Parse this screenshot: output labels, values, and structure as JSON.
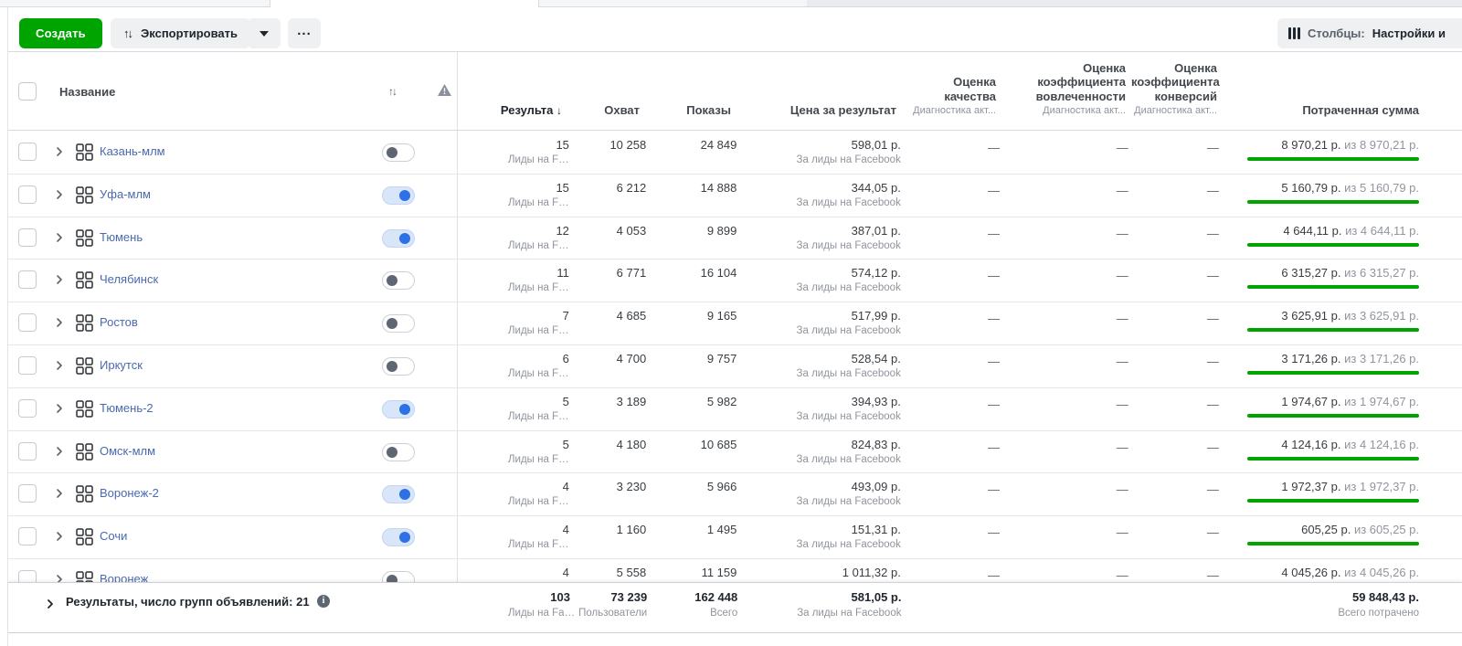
{
  "colors": {
    "accent-green": "#00a400",
    "toggle-on": "#2e71e5",
    "link-blue": "#4a69b0"
  },
  "toolbar": {
    "create": "Создать",
    "export": "Экспортировать",
    "export_icon": "↑↓",
    "more": "...",
    "columns_prefix": "Столбцы:",
    "columns_value": "Настройки и"
  },
  "table": {
    "header": {
      "name": "Название",
      "sort_icon": "↑↓",
      "results": "Результа",
      "results_arrow": "↓",
      "reach": "Охват",
      "impressions": "Показы",
      "cost_per_result": "Цена за результат",
      "quality": "Оценка качества",
      "engagement": "Оценка коэффициента вовлеченности",
      "conversions": "Оценка коэффициента конверсий",
      "diagnostics": "Диагностика акт...",
      "spent": "Потраченная сумма"
    },
    "row_subs": {
      "results": "Лиды на F…",
      "cost": "За лиды на Facebook"
    },
    "dash": "—",
    "rows": [
      {
        "name": "Казань-млм",
        "enabled": false,
        "results": "15",
        "reach": "10 258",
        "impressions": "24 849",
        "cost_per_result": "598,01 р.",
        "spent": "8 970,21 р.",
        "spent_of": "из 8 970,21 р."
      },
      {
        "name": "Уфа-млм",
        "enabled": true,
        "results": "15",
        "reach": "6 212",
        "impressions": "14 888",
        "cost_per_result": "344,05 р.",
        "spent": "5 160,79 р.",
        "spent_of": "из 5 160,79 р."
      },
      {
        "name": "Тюмень",
        "enabled": true,
        "results": "12",
        "reach": "4 053",
        "impressions": "9 899",
        "cost_per_result": "387,01 р.",
        "spent": "4 644,11 р.",
        "spent_of": "из 4 644,11 р."
      },
      {
        "name": "Челябинск",
        "enabled": false,
        "results": "11",
        "reach": "6 771",
        "impressions": "16 104",
        "cost_per_result": "574,12 р.",
        "spent": "6 315,27 р.",
        "spent_of": "из 6 315,27 р."
      },
      {
        "name": "Ростов",
        "enabled": false,
        "results": "7",
        "reach": "4 685",
        "impressions": "9 165",
        "cost_per_result": "517,99 р.",
        "spent": "3 625,91 р.",
        "spent_of": "из 3 625,91 р."
      },
      {
        "name": "Иркутск",
        "enabled": false,
        "results": "6",
        "reach": "4 700",
        "impressions": "9 757",
        "cost_per_result": "528,54 р.",
        "spent": "3 171,26 р.",
        "spent_of": "из 3 171,26 р."
      },
      {
        "name": "Тюмень-2",
        "enabled": true,
        "results": "5",
        "reach": "3 189",
        "impressions": "5 982",
        "cost_per_result": "394,93 р.",
        "spent": "1 974,67 р.",
        "spent_of": "из 1 974,67 р."
      },
      {
        "name": "Омск-млм",
        "enabled": false,
        "results": "5",
        "reach": "4 180",
        "impressions": "10 685",
        "cost_per_result": "824,83 р.",
        "spent": "4 124,16 р.",
        "spent_of": "из 4 124,16 р."
      },
      {
        "name": "Воронеж-2",
        "enabled": true,
        "results": "4",
        "reach": "3 230",
        "impressions": "5 966",
        "cost_per_result": "493,09 р.",
        "spent": "1 972,37 р.",
        "spent_of": "из 1 972,37 р."
      },
      {
        "name": "Сочи",
        "enabled": true,
        "results": "4",
        "reach": "1 160",
        "impressions": "1 495",
        "cost_per_result": "151,31 р.",
        "spent": "605,25 р.",
        "spent_of": "из 605,25 р."
      },
      {
        "name": "Воронеж",
        "enabled": false,
        "results": "4",
        "reach": "5 558",
        "impressions": "11 159",
        "cost_per_result": "1 011,32 р.",
        "spent": "4 045,26 р.",
        "spent_of": "из 4 045,26 р."
      }
    ],
    "footer": {
      "label": "Результаты, число групп объявлений: 21",
      "info": "i",
      "results": "103",
      "results_sub": "Лиды на Fa…",
      "reach": "73 239",
      "reach_sub": "Пользователи",
      "impressions": "162 448",
      "impressions_sub": "Всего",
      "cost": "581,05 р.",
      "cost_sub": "За лиды на Facebook",
      "spent": "59 848,43 р.",
      "spent_sub": "Всего потрачено"
    }
  }
}
